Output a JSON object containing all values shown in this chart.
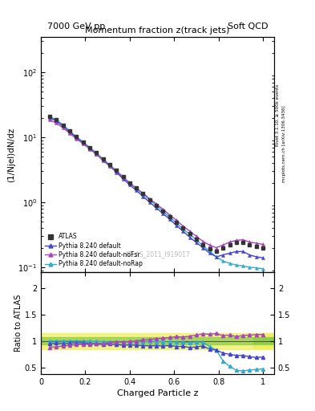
{
  "title_top_left": "7000 GeV pp",
  "title_top_right": "Soft QCD",
  "main_title": "Momentum fraction z(track jets)",
  "watermark": "ATLAS_2011_I919017",
  "rivet_label": "Rivet 3.1.10, ≥ 500k events",
  "mcplots_label": "mcplots.cern.ch [arXiv:1306.3436]",
  "ylabel_main": "(1/Njel)dN/dz",
  "ylabel_ratio": "Ratio to ATLAS",
  "xlabel": "Charged Particle z",
  "xlim": [
    0.0,
    1.05
  ],
  "ylim_main": [
    0.085,
    350
  ],
  "ylim_ratio": [
    0.38,
    2.3
  ],
  "z_values": [
    0.04,
    0.07,
    0.1,
    0.13,
    0.16,
    0.19,
    0.22,
    0.25,
    0.28,
    0.31,
    0.34,
    0.37,
    0.4,
    0.43,
    0.46,
    0.49,
    0.52,
    0.55,
    0.58,
    0.61,
    0.64,
    0.67,
    0.7,
    0.73,
    0.76,
    0.79,
    0.82,
    0.85,
    0.88,
    0.91,
    0.94,
    0.97,
    1.0
  ],
  "atlas_y": [
    21.0,
    18.5,
    15.5,
    12.5,
    10.2,
    8.5,
    7.0,
    5.8,
    4.7,
    3.8,
    3.1,
    2.5,
    2.0,
    1.65,
    1.35,
    1.1,
    0.9,
    0.74,
    0.6,
    0.49,
    0.4,
    0.33,
    0.27,
    0.22,
    0.195,
    0.175,
    0.2,
    0.22,
    0.24,
    0.24,
    0.22,
    0.21,
    0.2
  ],
  "atlas_yerr": [
    0.5,
    0.4,
    0.35,
    0.3,
    0.25,
    0.2,
    0.18,
    0.15,
    0.12,
    0.1,
    0.08,
    0.07,
    0.055,
    0.045,
    0.037,
    0.03,
    0.025,
    0.02,
    0.016,
    0.013,
    0.011,
    0.009,
    0.007,
    0.006,
    0.005,
    0.005,
    0.006,
    0.007,
    0.008,
    0.008,
    0.007,
    0.007,
    0.007
  ],
  "pythia_default_y": [
    20.0,
    17.8,
    14.8,
    12.0,
    9.9,
    8.2,
    6.7,
    5.5,
    4.4,
    3.6,
    2.9,
    2.3,
    1.85,
    1.52,
    1.23,
    1.0,
    0.82,
    0.67,
    0.55,
    0.44,
    0.36,
    0.29,
    0.24,
    0.2,
    0.165,
    0.145,
    0.155,
    0.165,
    0.175,
    0.175,
    0.155,
    0.145,
    0.14
  ],
  "pythia_noFsr_y": [
    18.5,
    16.5,
    14.0,
    11.5,
    9.5,
    8.0,
    6.6,
    5.5,
    4.5,
    3.7,
    3.05,
    2.45,
    1.98,
    1.65,
    1.38,
    1.13,
    0.94,
    0.78,
    0.64,
    0.53,
    0.43,
    0.36,
    0.3,
    0.25,
    0.22,
    0.2,
    0.22,
    0.245,
    0.26,
    0.265,
    0.245,
    0.235,
    0.225
  ],
  "pythia_noRap_y": [
    21.0,
    18.5,
    15.5,
    12.5,
    10.2,
    8.5,
    6.95,
    5.75,
    4.65,
    3.75,
    3.05,
    2.45,
    1.97,
    1.63,
    1.33,
    1.09,
    0.89,
    0.73,
    0.59,
    0.48,
    0.39,
    0.32,
    0.265,
    0.215,
    0.175,
    0.145,
    0.125,
    0.115,
    0.108,
    0.105,
    0.1,
    0.098,
    0.095
  ],
  "color_atlas": "#333333",
  "color_default": "#4444cc",
  "color_noFsr": "#aa44bb",
  "color_noRap": "#33aacc",
  "band_green_ylow": 0.93,
  "band_green_yhigh": 1.07,
  "band_yellow_ylow": 0.85,
  "band_yellow_yhigh": 1.15,
  "last_bin_xstart": 0.955,
  "last_bin_xend": 1.05
}
